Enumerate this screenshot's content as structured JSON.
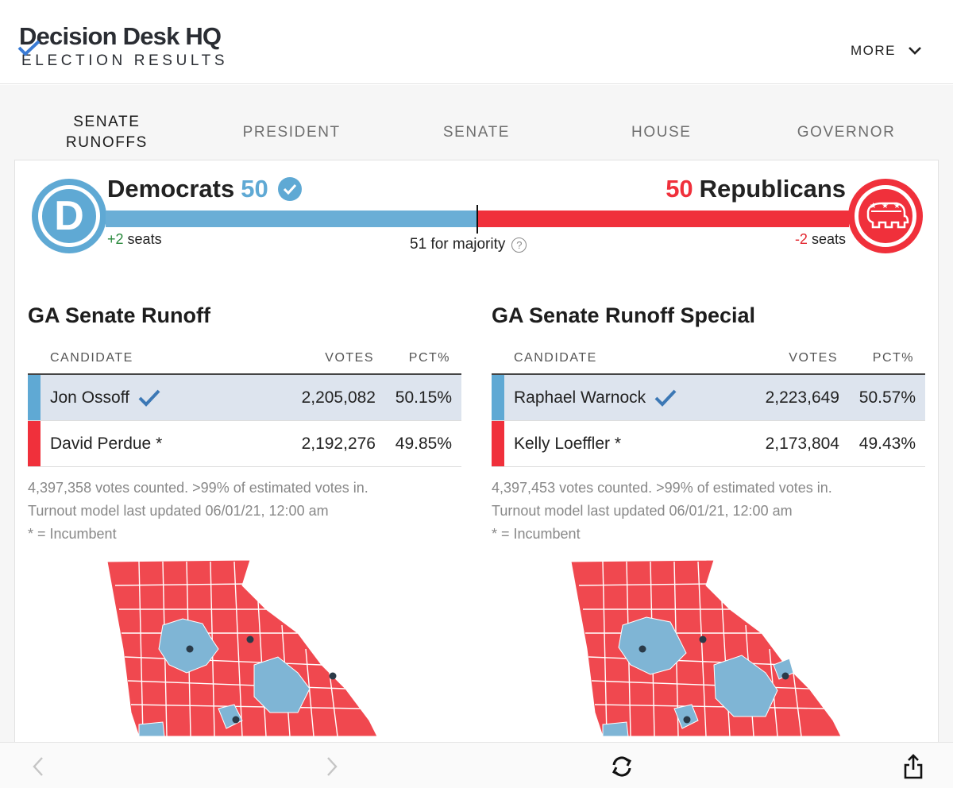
{
  "header": {
    "logo_title": "Decision Desk HQ",
    "logo_subtitle": "ELECTION RESULTS",
    "more_label": "MORE"
  },
  "tabs": [
    {
      "label": "SENATE RUNOFFS",
      "active": true
    },
    {
      "label": "PRESIDENT",
      "active": false
    },
    {
      "label": "SENATE",
      "active": false
    },
    {
      "label": "HOUSE",
      "active": false
    },
    {
      "label": "GOVERNOR",
      "active": false
    }
  ],
  "balance": {
    "dem_name": "Democrats",
    "dem_seats": "50",
    "dem_change": "+2",
    "rep_name": "Republicans",
    "rep_seats": "50",
    "rep_change": "-2",
    "seats_word": "seats",
    "majority_label": "51 for majority",
    "dem_share": 0.5,
    "colors": {
      "dem": "#5fa9d4",
      "rep": "#f0303b"
    }
  },
  "races": [
    {
      "title": "GA Senate Runoff",
      "headers": {
        "candidate": "CANDIDATE",
        "votes": "VOTES",
        "pct": "PCT%"
      },
      "candidates": [
        {
          "name": "Jon Ossoff",
          "votes": "2,205,082",
          "pct": "50.15%",
          "party": "dem",
          "winner": true
        },
        {
          "name": "David Perdue *",
          "votes": "2,192,276",
          "pct": "49.85%",
          "party": "rep",
          "winner": false
        }
      ],
      "notes": [
        "4,397,358 votes counted. >99% of estimated votes in.",
        "Turnout model last updated 06/01/21, 12:00 am",
        "* = Incumbent"
      ]
    },
    {
      "title": "GA Senate Runoff Special",
      "headers": {
        "candidate": "CANDIDATE",
        "votes": "VOTES",
        "pct": "PCT%"
      },
      "candidates": [
        {
          "name": "Raphael Warnock",
          "votes": "2,223,649",
          "pct": "50.57%",
          "party": "dem",
          "winner": true
        },
        {
          "name": "Kelly Loeffler *",
          "votes": "2,173,804",
          "pct": "49.43%",
          "party": "rep",
          "winner": false
        }
      ],
      "notes": [
        "4,397,453 votes counted. >99% of estimated votes in.",
        "Turnout model last updated 06/01/21, 12:00 am",
        "* = Incumbent"
      ]
    }
  ],
  "toolbar": {
    "icons": [
      "back-icon",
      "forward-icon",
      "reload-icon",
      "share-icon"
    ]
  }
}
